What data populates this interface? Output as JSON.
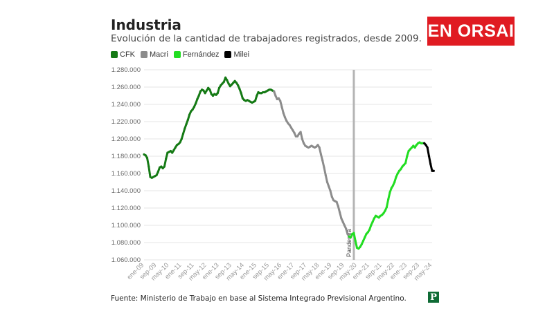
{
  "brand": {
    "name": "EN ORSAI",
    "color": "#e01b22"
  },
  "source_text": "Fuente: Ministerio de Trabajo en base al Sistema Integrado Previsional Argentino.",
  "publisher_logo": "P",
  "chart_data": {
    "type": "line",
    "title": "Industria",
    "subtitle": "Evolución de la cantidad de trabajadores registrados, desde 2009.",
    "xlabel": "",
    "ylabel": "",
    "ylim": [
      1060000,
      1280000
    ],
    "yticks": [
      "1.280.000",
      "1.260.000",
      "1.240.000",
      "1.220.000",
      "1.200.000",
      "1.180.000",
      "1.160.000",
      "1.140.000",
      "1.120.000",
      "1.100.000",
      "1.080.000",
      "1.060.000"
    ],
    "ytick_values": [
      1280000,
      1260000,
      1240000,
      1220000,
      1200000,
      1180000,
      1160000,
      1140000,
      1120000,
      1100000,
      1080000,
      1060000
    ],
    "xticks": [
      {
        "label": "ene-09",
        "x": "2009-01"
      },
      {
        "label": "sep-09",
        "x": "2009-09"
      },
      {
        "label": "may-10",
        "x": "2010-05"
      },
      {
        "label": "ene-11",
        "x": "2011-01"
      },
      {
        "label": "sep-11",
        "x": "2011-09"
      },
      {
        "label": "may-12",
        "x": "2012-05"
      },
      {
        "label": "ene-13",
        "x": "2013-01"
      },
      {
        "label": "sep-13",
        "x": "2013-09"
      },
      {
        "label": "may-14",
        "x": "2014-05"
      },
      {
        "label": "ene-15",
        "x": "2015-01"
      },
      {
        "label": "sep-15",
        "x": "2015-09"
      },
      {
        "label": "may-16",
        "x": "2016-05"
      },
      {
        "label": "ene-17",
        "x": "2017-01"
      },
      {
        "label": "sep-17",
        "x": "2017-09"
      },
      {
        "label": "may-18",
        "x": "2018-05"
      },
      {
        "label": "ene-19",
        "x": "2019-01"
      },
      {
        "label": "sep-19",
        "x": "2019-09"
      },
      {
        "label": "may-20",
        "x": "2020-05"
      },
      {
        "label": "ene-21",
        "x": "2021-01"
      },
      {
        "label": "sep-21",
        "x": "2021-09"
      },
      {
        "label": "may-22",
        "x": "2022-05"
      },
      {
        "label": "ene-23",
        "x": "2023-01"
      },
      {
        "label": "sep-23",
        "x": "2023-09"
      },
      {
        "label": "may-24",
        "x": "2024-05"
      }
    ],
    "x_range": [
      "2009-01",
      "2024-05"
    ],
    "grid": true,
    "legend_position": "top-left",
    "annotation": {
      "label": "Pandemia",
      "x": "2020-03"
    },
    "series": [
      {
        "name": "CFK",
        "color": "#157a15",
        "points": [
          [
            "2009-01",
            1182000
          ],
          [
            "2009-02",
            1181000
          ],
          [
            "2009-03",
            1178000
          ],
          [
            "2009-04",
            1168000
          ],
          [
            "2009-05",
            1156000
          ],
          [
            "2009-06",
            1155000
          ],
          [
            "2009-07",
            1156000
          ],
          [
            "2009-08",
            1157000
          ],
          [
            "2009-09",
            1158000
          ],
          [
            "2009-10",
            1162000
          ],
          [
            "2009-11",
            1167000
          ],
          [
            "2009-12",
            1168000
          ],
          [
            "2010-01",
            1166000
          ],
          [
            "2010-02",
            1168000
          ],
          [
            "2010-03",
            1177000
          ],
          [
            "2010-04",
            1184000
          ],
          [
            "2010-05",
            1185000
          ],
          [
            "2010-06",
            1186000
          ],
          [
            "2010-07",
            1184000
          ],
          [
            "2010-08",
            1187000
          ],
          [
            "2010-09",
            1190000
          ],
          [
            "2010-10",
            1193000
          ],
          [
            "2010-11",
            1194000
          ],
          [
            "2010-12",
            1196000
          ],
          [
            "2011-01",
            1200000
          ],
          [
            "2011-02",
            1206000
          ],
          [
            "2011-03",
            1212000
          ],
          [
            "2011-04",
            1217000
          ],
          [
            "2011-05",
            1222000
          ],
          [
            "2011-06",
            1228000
          ],
          [
            "2011-07",
            1232000
          ],
          [
            "2011-08",
            1234000
          ],
          [
            "2011-09",
            1237000
          ],
          [
            "2011-10",
            1241000
          ],
          [
            "2011-11",
            1246000
          ],
          [
            "2011-12",
            1250000
          ],
          [
            "2012-01",
            1255000
          ],
          [
            "2012-02",
            1257000
          ],
          [
            "2012-03",
            1256000
          ],
          [
            "2012-04",
            1253000
          ],
          [
            "2012-05",
            1256000
          ],
          [
            "2012-06",
            1259000
          ],
          [
            "2012-07",
            1257000
          ],
          [
            "2012-08",
            1252000
          ],
          [
            "2012-09",
            1250000
          ],
          [
            "2012-10",
            1252000
          ],
          [
            "2012-11",
            1251000
          ],
          [
            "2012-12",
            1253000
          ],
          [
            "2013-01",
            1259000
          ],
          [
            "2013-02",
            1262000
          ],
          [
            "2013-03",
            1264000
          ],
          [
            "2013-04",
            1266000
          ],
          [
            "2013-05",
            1271000
          ],
          [
            "2013-06",
            1268000
          ],
          [
            "2013-07",
            1264000
          ],
          [
            "2013-08",
            1261000
          ],
          [
            "2013-09",
            1263000
          ],
          [
            "2013-10",
            1265000
          ],
          [
            "2013-11",
            1267000
          ],
          [
            "2013-12",
            1265000
          ],
          [
            "2014-01",
            1262000
          ],
          [
            "2014-02",
            1258000
          ],
          [
            "2014-03",
            1253000
          ],
          [
            "2014-04",
            1247000
          ],
          [
            "2014-05",
            1245000
          ],
          [
            "2014-06",
            1244000
          ],
          [
            "2014-07",
            1245000
          ],
          [
            "2014-08",
            1244000
          ],
          [
            "2014-09",
            1243000
          ],
          [
            "2014-10",
            1242000
          ],
          [
            "2014-11",
            1243000
          ],
          [
            "2014-12",
            1244000
          ],
          [
            "2015-01",
            1250000
          ],
          [
            "2015-02",
            1254000
          ],
          [
            "2015-03",
            1253000
          ],
          [
            "2015-04",
            1253000
          ],
          [
            "2015-05",
            1254000
          ],
          [
            "2015-06",
            1254000
          ],
          [
            "2015-07",
            1255000
          ],
          [
            "2015-08",
            1256000
          ],
          [
            "2015-09",
            1257000
          ],
          [
            "2015-10",
            1257000
          ],
          [
            "2015-11",
            1256000
          ],
          [
            "2015-12",
            1255000
          ]
        ]
      },
      {
        "name": "Macri",
        "color": "#8c8c8c",
        "points": [
          [
            "2015-12",
            1255000
          ],
          [
            "2016-01",
            1250000
          ],
          [
            "2016-02",
            1246000
          ],
          [
            "2016-03",
            1247000
          ],
          [
            "2016-04",
            1244000
          ],
          [
            "2016-05",
            1237000
          ],
          [
            "2016-06",
            1230000
          ],
          [
            "2016-07",
            1225000
          ],
          [
            "2016-08",
            1221000
          ],
          [
            "2016-09",
            1218000
          ],
          [
            "2016-10",
            1216000
          ],
          [
            "2016-11",
            1213000
          ],
          [
            "2016-12",
            1210000
          ],
          [
            "2017-01",
            1207000
          ],
          [
            "2017-02",
            1203000
          ],
          [
            "2017-03",
            1203000
          ],
          [
            "2017-04",
            1206000
          ],
          [
            "2017-05",
            1208000
          ],
          [
            "2017-06",
            1200000
          ],
          [
            "2017-07",
            1195000
          ],
          [
            "2017-08",
            1192000
          ],
          [
            "2017-09",
            1191000
          ],
          [
            "2017-10",
            1190000
          ],
          [
            "2017-11",
            1191000
          ],
          [
            "2017-12",
            1192000
          ],
          [
            "2018-01",
            1191000
          ],
          [
            "2018-02",
            1190000
          ],
          [
            "2018-03",
            1191000
          ],
          [
            "2018-04",
            1193000
          ],
          [
            "2018-05",
            1190000
          ],
          [
            "2018-06",
            1182000
          ],
          [
            "2018-07",
            1175000
          ],
          [
            "2018-08",
            1167000
          ],
          [
            "2018-09",
            1158000
          ],
          [
            "2018-10",
            1150000
          ],
          [
            "2018-11",
            1145000
          ],
          [
            "2018-12",
            1140000
          ],
          [
            "2019-01",
            1133000
          ],
          [
            "2019-02",
            1129000
          ],
          [
            "2019-03",
            1128000
          ],
          [
            "2019-04",
            1127000
          ],
          [
            "2019-05",
            1122000
          ],
          [
            "2019-06",
            1115000
          ],
          [
            "2019-07",
            1108000
          ],
          [
            "2019-08",
            1104000
          ],
          [
            "2019-09",
            1100000
          ],
          [
            "2019-10",
            1096000
          ],
          [
            "2019-11",
            1090000
          ],
          [
            "2019-12",
            1087000
          ]
        ]
      },
      {
        "name": "Fernández",
        "color": "#22dd22",
        "points": [
          [
            "2019-12",
            1087000
          ],
          [
            "2020-01",
            1086000
          ],
          [
            "2020-02",
            1090000
          ],
          [
            "2020-03",
            1091000
          ],
          [
            "2020-04",
            1082000
          ],
          [
            "2020-05",
            1074000
          ],
          [
            "2020-06",
            1073000
          ],
          [
            "2020-07",
            1075000
          ],
          [
            "2020-08",
            1078000
          ],
          [
            "2020-09",
            1082000
          ],
          [
            "2020-10",
            1086000
          ],
          [
            "2020-11",
            1090000
          ],
          [
            "2020-12",
            1092000
          ],
          [
            "2021-01",
            1095000
          ],
          [
            "2021-02",
            1100000
          ],
          [
            "2021-03",
            1104000
          ],
          [
            "2021-04",
            1108000
          ],
          [
            "2021-05",
            1111000
          ],
          [
            "2021-06",
            1110000
          ],
          [
            "2021-07",
            1109000
          ],
          [
            "2021-08",
            1111000
          ],
          [
            "2021-09",
            1112000
          ],
          [
            "2021-10",
            1114000
          ],
          [
            "2021-11",
            1117000
          ],
          [
            "2021-12",
            1121000
          ],
          [
            "2022-01",
            1130000
          ],
          [
            "2022-02",
            1138000
          ],
          [
            "2022-03",
            1143000
          ],
          [
            "2022-04",
            1146000
          ],
          [
            "2022-05",
            1150000
          ],
          [
            "2022-06",
            1156000
          ],
          [
            "2022-07",
            1160000
          ],
          [
            "2022-08",
            1163000
          ],
          [
            "2022-09",
            1165000
          ],
          [
            "2022-10",
            1168000
          ],
          [
            "2022-11",
            1170000
          ],
          [
            "2022-12",
            1172000
          ],
          [
            "2023-01",
            1180000
          ],
          [
            "2023-02",
            1186000
          ],
          [
            "2023-03",
            1188000
          ],
          [
            "2023-04",
            1190000
          ],
          [
            "2023-05",
            1192000
          ],
          [
            "2023-06",
            1190000
          ],
          [
            "2023-07",
            1193000
          ],
          [
            "2023-08",
            1195000
          ],
          [
            "2023-09",
            1196000
          ],
          [
            "2023-10",
            1195000
          ],
          [
            "2023-11",
            1195000
          ],
          [
            "2023-12",
            1195000
          ]
        ]
      },
      {
        "name": "Milei",
        "color": "#000000",
        "points": [
          [
            "2023-12",
            1195000
          ],
          [
            "2024-01",
            1193000
          ],
          [
            "2024-02",
            1190000
          ],
          [
            "2024-03",
            1180000
          ],
          [
            "2024-04",
            1171000
          ],
          [
            "2024-05",
            1163000
          ],
          [
            "2024-06",
            1163000
          ]
        ]
      }
    ]
  }
}
